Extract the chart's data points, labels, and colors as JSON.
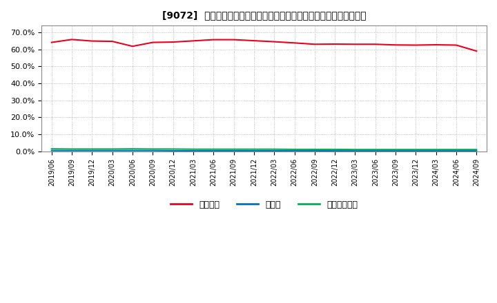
{
  "title": "[9072]  自己資本、のれん、繰延税金資産の総資産に対する比率の推移",
  "x_labels": [
    "2019/06",
    "2019/09",
    "2019/12",
    "2020/03",
    "2020/06",
    "2020/09",
    "2020/12",
    "2021/03",
    "2021/06",
    "2021/09",
    "2021/12",
    "2022/03",
    "2022/06",
    "2022/09",
    "2022/12",
    "2023/03",
    "2023/06",
    "2023/09",
    "2023/12",
    "2024/03",
    "2024/06",
    "2024/09"
  ],
  "equity_ratio": [
    0.641,
    0.658,
    0.649,
    0.647,
    0.618,
    0.641,
    0.643,
    0.65,
    0.657,
    0.657,
    0.651,
    0.645,
    0.638,
    0.63,
    0.631,
    0.63,
    0.63,
    0.626,
    0.625,
    0.627,
    0.625,
    0.59
  ],
  "noren_ratio": [
    0.005,
    0.005,
    0.005,
    0.005,
    0.005,
    0.005,
    0.004,
    0.004,
    0.004,
    0.004,
    0.004,
    0.004,
    0.004,
    0.004,
    0.003,
    0.003,
    0.003,
    0.003,
    0.003,
    0.003,
    0.003,
    0.003
  ],
  "deferred_tax_ratio": [
    0.015,
    0.014,
    0.014,
    0.014,
    0.015,
    0.014,
    0.014,
    0.013,
    0.013,
    0.013,
    0.013,
    0.013,
    0.012,
    0.012,
    0.012,
    0.011,
    0.011,
    0.011,
    0.011,
    0.011,
    0.011,
    0.011
  ],
  "equity_color": "#e8001c",
  "noren_color": "#0070c0",
  "deferred_tax_color": "#00b050",
  "background_color": "#ffffff",
  "plot_bg_color": "#ffffff",
  "grid_color": "#aaaaaa",
  "legend_labels": [
    "自己資本",
    "のれん",
    "繰延税金資産"
  ],
  "ylim": [
    0.0,
    0.74
  ],
  "yticks": [
    0.0,
    0.1,
    0.2,
    0.3,
    0.4,
    0.5,
    0.6,
    0.7
  ]
}
